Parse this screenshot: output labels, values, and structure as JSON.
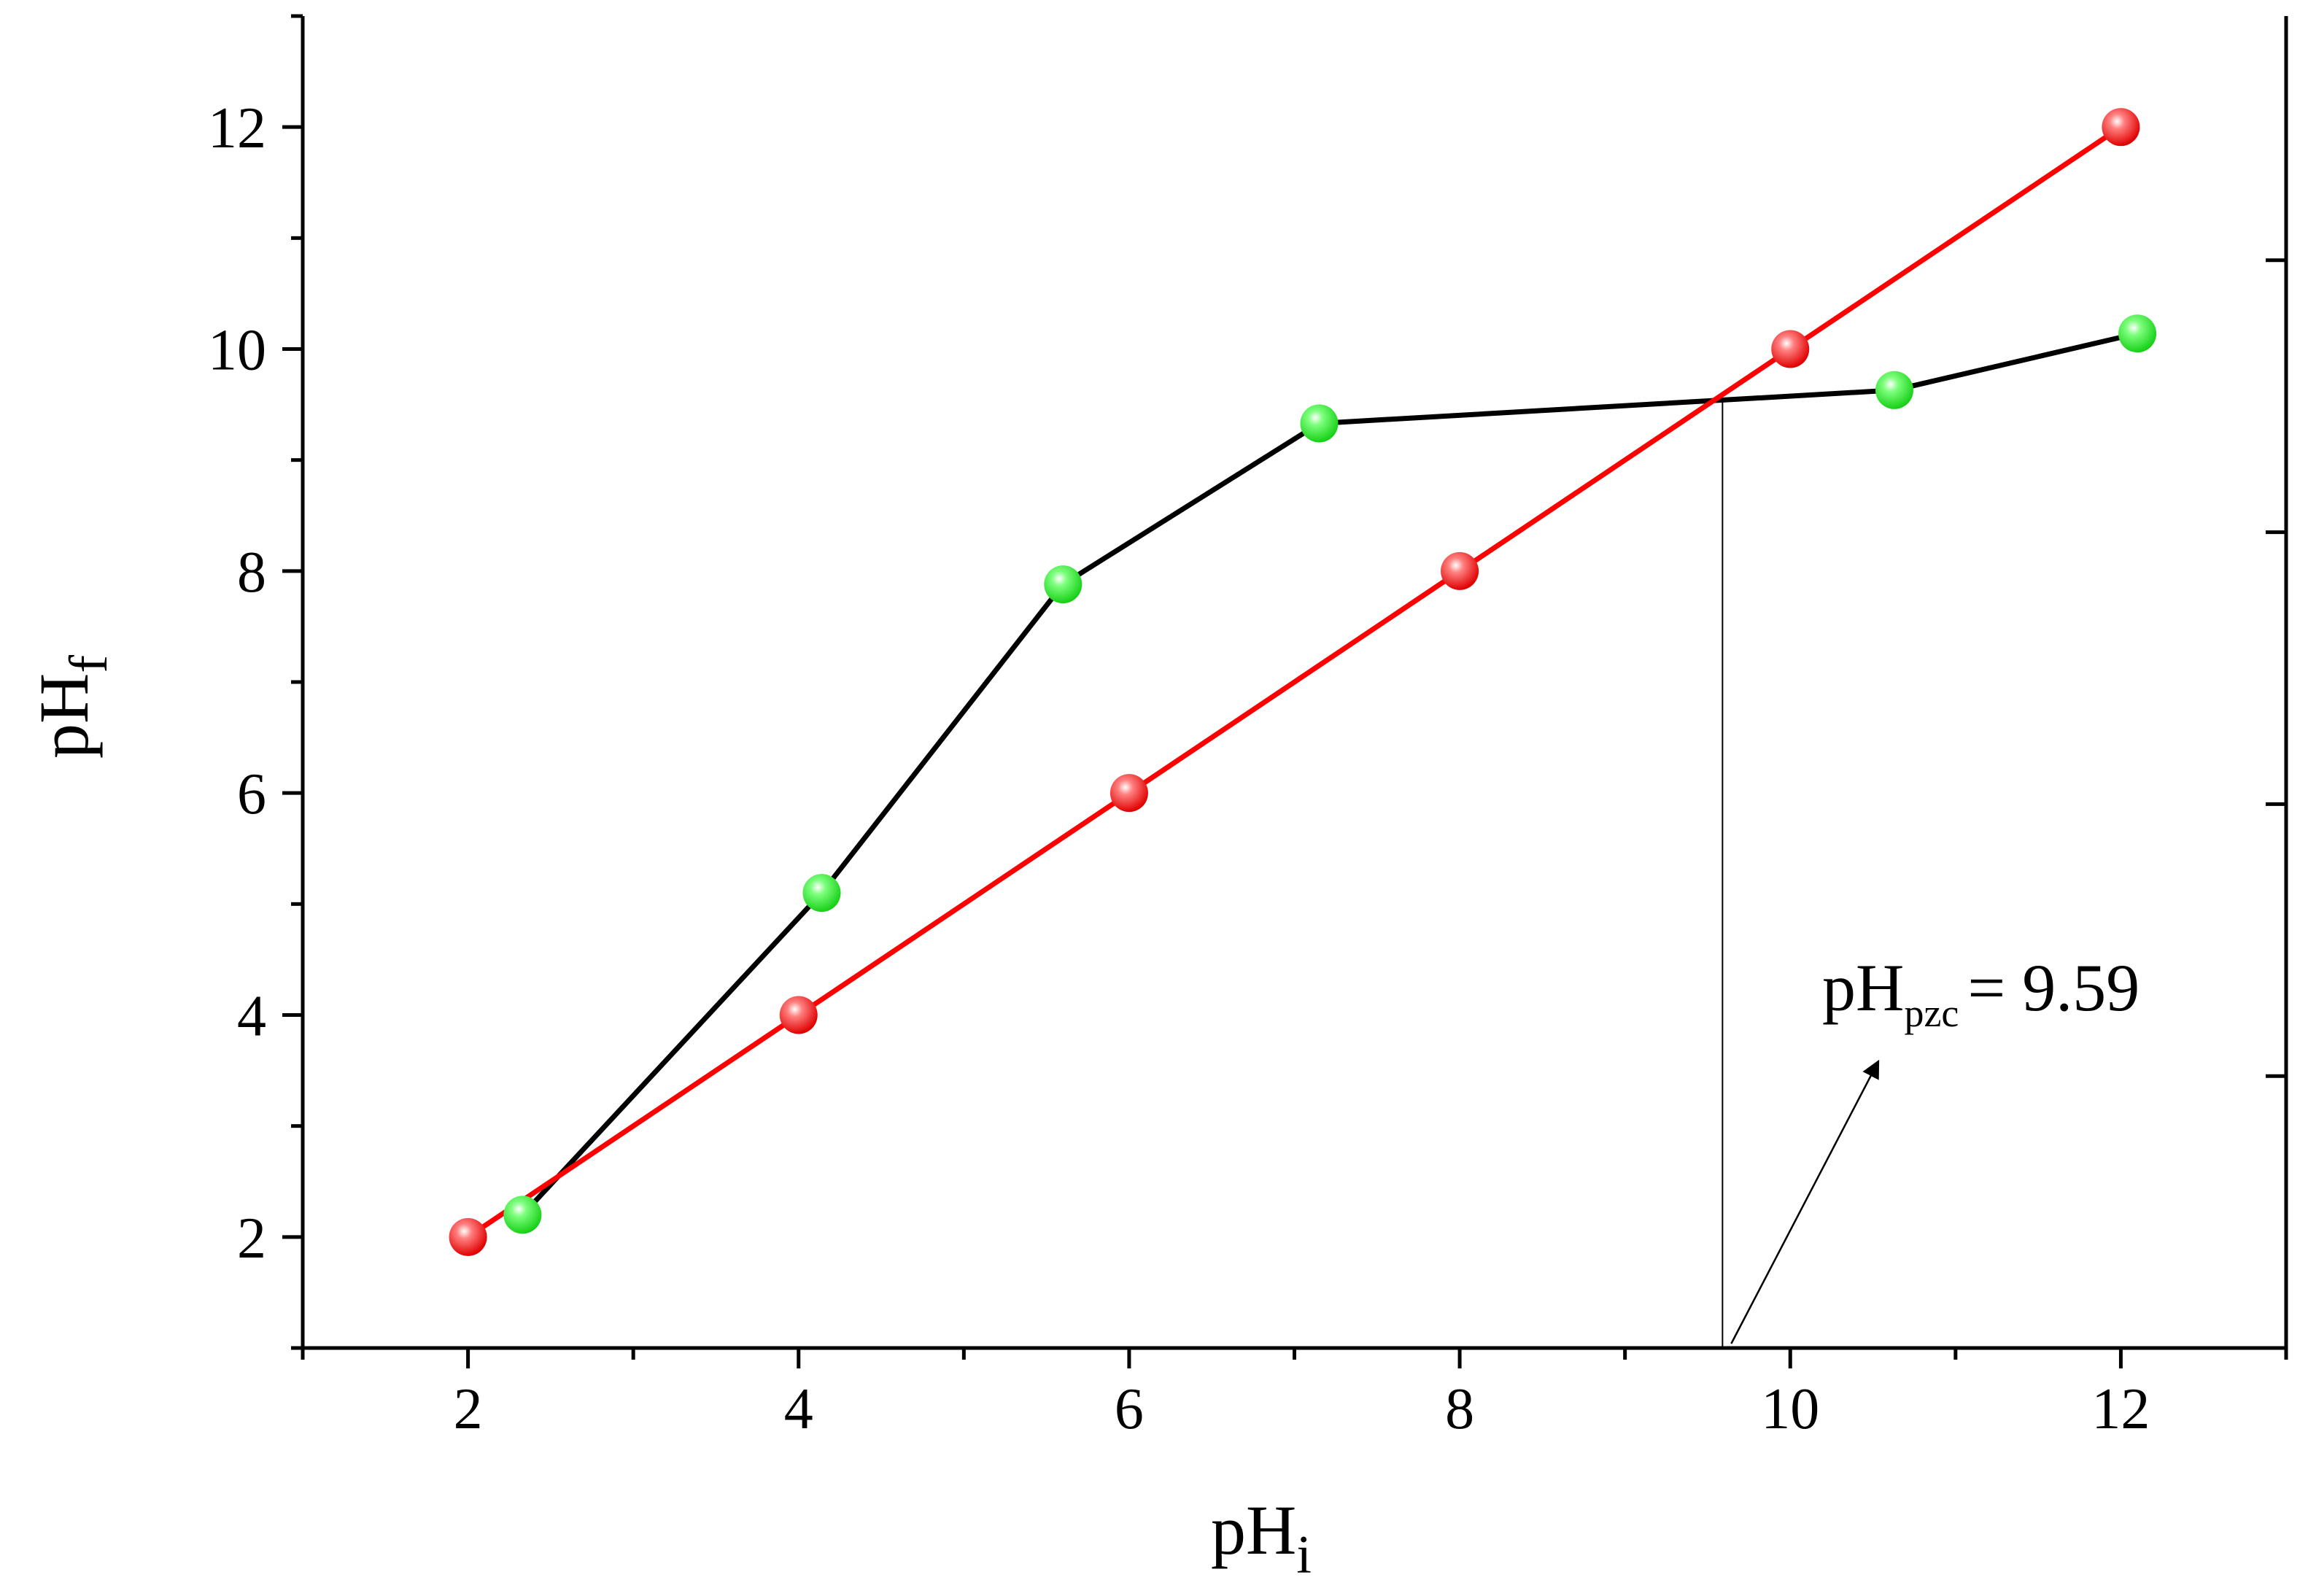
{
  "chart_data": {
    "type": "line",
    "title": "",
    "xlabel": {
      "main": "pH",
      "sub": "i"
    },
    "ylabel": {
      "main": "pH",
      "sub": "f"
    },
    "xlim": [
      1,
      13
    ],
    "ylim": [
      1,
      13
    ],
    "x_ticks": [
      2,
      4,
      6,
      8,
      10,
      12
    ],
    "y_ticks": [
      2,
      4,
      6,
      8,
      10,
      12
    ],
    "x_tick_labels": [
      "2",
      "4",
      "6",
      "8",
      "10",
      "12"
    ],
    "y_tick_labels": [
      "2",
      "4",
      "6",
      "8",
      "10",
      "12"
    ],
    "x_minor_ticks": [
      1,
      3,
      5,
      7,
      9,
      11,
      13
    ],
    "y_minor_ticks": [
      1,
      3,
      5,
      7,
      9,
      11,
      13
    ],
    "right_axis_ticks": [
      3.45,
      5.9,
      8.35,
      10.8
    ],
    "grid": false,
    "legend": "none",
    "series": [
      {
        "color": "#000000",
        "marker_color": "#22ee22",
        "x": [
          2.33,
          4.14,
          5.6,
          7.15,
          10.63,
          12.1
        ],
        "y": [
          2.2,
          5.1,
          7.88,
          9.33,
          9.63,
          10.14
        ]
      },
      {
        "color": "#ff0000",
        "marker_color": "#ff1a1a",
        "x": [
          2,
          4,
          6,
          8,
          10,
          12
        ],
        "y": [
          2,
          4,
          6,
          8,
          10,
          12
        ]
      }
    ],
    "pzc": {
      "x": 9.59,
      "y": 9.55,
      "label_main": "pH",
      "label_sub": "pzc",
      "label_value": "= 9.59"
    }
  }
}
